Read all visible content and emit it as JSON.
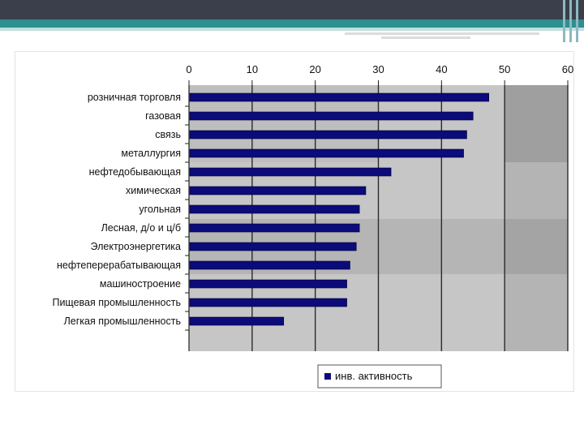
{
  "chart_data": {
    "type": "bar",
    "orientation": "horizontal",
    "categories": [
      "розничная торговля",
      "газовая",
      "связь",
      "металлургия",
      "нефтедобывающая",
      "химическая",
      "угольная",
      "Лесная, д/о и ц/б",
      "Электроэнергетика",
      "нефтеперерабатывающая",
      "машиностроение",
      "Пищевая промышленность",
      "Легкая промышленность"
    ],
    "series": [
      {
        "name": "инв. активность",
        "values": [
          47.5,
          45,
          44,
          43.5,
          32,
          28,
          27,
          27,
          26.5,
          25.5,
          25,
          25,
          15
        ],
        "color": "#0b0b7a"
      }
    ],
    "xlim": [
      0,
      60
    ],
    "xticks": [
      0,
      10,
      20,
      30,
      40,
      50,
      60
    ],
    "legend": {
      "position": "bottom",
      "label": "инв. активность"
    },
    "grid": true
  },
  "colors": {
    "plot_bg_light": "#c6c6c6",
    "plot_bg_dark": "#9f9f9f",
    "bar": "#0b0b7a",
    "header_dark": "#3a3f4b",
    "header_teal": "#2f8e8e"
  }
}
